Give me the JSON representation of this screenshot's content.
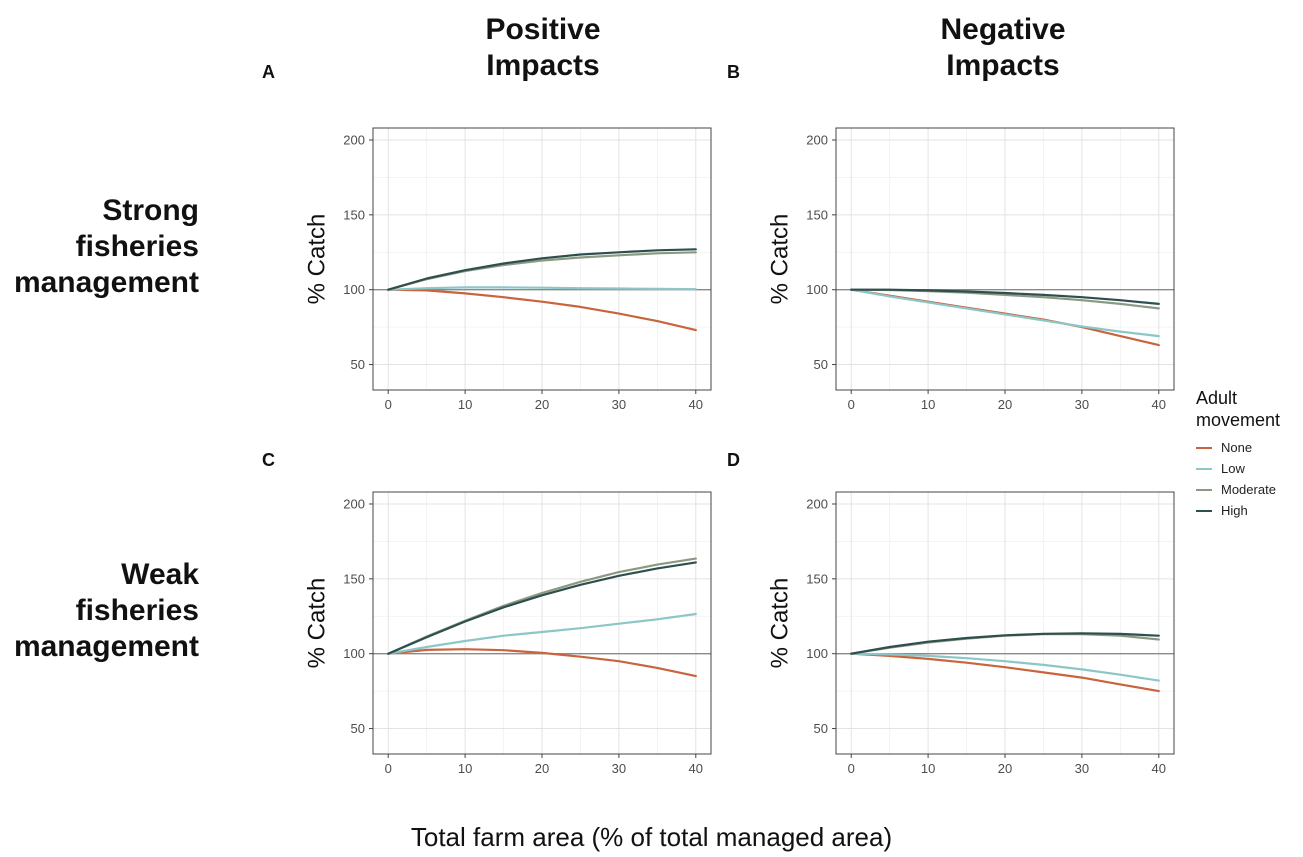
{
  "col_titles": [
    "Positive\nImpacts",
    "Negative\nImpacts"
  ],
  "row_titles": [
    "Strong\nfisheries\nmanagement",
    "Weak\nfisheries\nmanagement"
  ],
  "xlabel": "Total farm area (% of total managed area)",
  "legend": {
    "title_line1": "Adult",
    "title_line2": "movement",
    "items": [
      {
        "name": "None",
        "color": "#c8643e"
      },
      {
        "name": "Low",
        "color": "#8cc6c6"
      },
      {
        "name": "Moderate",
        "color": "#8a9a82"
      },
      {
        "name": "High",
        "color": "#2f4f4f"
      }
    ]
  },
  "chart_data": [
    {
      "type": "line",
      "panel": "A",
      "ylabel": "% Catch",
      "xlim": [
        0,
        40
      ],
      "ylim": [
        33,
        208
      ],
      "x_ticks": [
        0,
        10,
        20,
        30,
        40
      ],
      "y_ticks": [
        50,
        100,
        150,
        200
      ],
      "reference_line": 100,
      "x": [
        0,
        5,
        10,
        15,
        20,
        25,
        30,
        35,
        40
      ],
      "series": [
        {
          "name": "None",
          "values": [
            100,
            99.5,
            97.5,
            95,
            92,
            88.5,
            84,
            79,
            73
          ]
        },
        {
          "name": "Low",
          "values": [
            100,
            101,
            101.5,
            101.5,
            101.3,
            101,
            100.8,
            100.5,
            100.3
          ]
        },
        {
          "name": "Moderate",
          "values": [
            100,
            107,
            112.5,
            116.5,
            119.5,
            121.5,
            123,
            124.3,
            125
          ]
        },
        {
          "name": "High",
          "values": [
            100,
            107.5,
            113,
            117.5,
            121,
            123.5,
            125,
            126.3,
            127
          ]
        }
      ]
    },
    {
      "type": "line",
      "panel": "B",
      "ylabel": "% Catch",
      "xlim": [
        0,
        40
      ],
      "ylim": [
        33,
        208
      ],
      "x_ticks": [
        0,
        10,
        20,
        30,
        40
      ],
      "y_ticks": [
        50,
        100,
        150,
        200
      ],
      "reference_line": 100,
      "x": [
        0,
        5,
        10,
        15,
        20,
        25,
        30,
        35,
        40
      ],
      "series": [
        {
          "name": "None",
          "values": [
            100,
            96,
            92,
            88,
            84,
            80,
            75,
            69,
            63
          ]
        },
        {
          "name": "Low",
          "values": [
            100,
            95.5,
            91.5,
            87.5,
            83.5,
            79.5,
            75.5,
            72,
            69
          ]
        },
        {
          "name": "Moderate",
          "values": [
            100,
            99.8,
            99,
            98,
            96.5,
            95,
            93,
            90.5,
            87.5
          ]
        },
        {
          "name": "High",
          "values": [
            100,
            100,
            99.5,
            98.8,
            97.8,
            96.5,
            95,
            93,
            90.5
          ]
        }
      ]
    },
    {
      "type": "line",
      "panel": "C",
      "ylabel": "% Catch",
      "xlim": [
        0,
        40
      ],
      "ylim": [
        33,
        208
      ],
      "x_ticks": [
        0,
        10,
        20,
        30,
        40
      ],
      "y_ticks": [
        50,
        100,
        150,
        200
      ],
      "reference_line": 100,
      "x": [
        0,
        5,
        10,
        15,
        20,
        25,
        30,
        35,
        40
      ],
      "series": [
        {
          "name": "None",
          "values": [
            100,
            102.5,
            103,
            102.3,
            100.5,
            98,
            95,
            90.5,
            85
          ]
        },
        {
          "name": "Low",
          "values": [
            100,
            104.5,
            108.5,
            112,
            114.5,
            117,
            120,
            123,
            126.5
          ]
        },
        {
          "name": "Moderate",
          "values": [
            100,
            111.5,
            122,
            132,
            140.5,
            148,
            154.5,
            159.5,
            163.5
          ]
        },
        {
          "name": "High",
          "values": [
            100,
            111,
            121.5,
            131,
            139,
            146,
            152,
            157,
            161
          ]
        }
      ]
    },
    {
      "type": "line",
      "panel": "D",
      "ylabel": "% Catch",
      "xlim": [
        0,
        40
      ],
      "ylim": [
        33,
        208
      ],
      "x_ticks": [
        0,
        10,
        20,
        30,
        40
      ],
      "y_ticks": [
        50,
        100,
        150,
        200
      ],
      "reference_line": 100,
      "x": [
        0,
        5,
        10,
        15,
        20,
        25,
        30,
        35,
        40
      ],
      "series": [
        {
          "name": "None",
          "values": [
            100,
            98.5,
            96.5,
            94,
            91,
            87.5,
            84,
            79.5,
            75
          ]
        },
        {
          "name": "Low",
          "values": [
            100,
            99.5,
            98.5,
            97,
            95,
            92.5,
            89.5,
            86,
            82
          ]
        },
        {
          "name": "Moderate",
          "values": [
            100,
            104,
            107.5,
            110,
            112,
            113,
            113,
            112,
            109.5
          ]
        },
        {
          "name": "High",
          "values": [
            100,
            104.5,
            108,
            110.5,
            112.3,
            113.3,
            113.6,
            113.2,
            112
          ]
        }
      ]
    }
  ]
}
